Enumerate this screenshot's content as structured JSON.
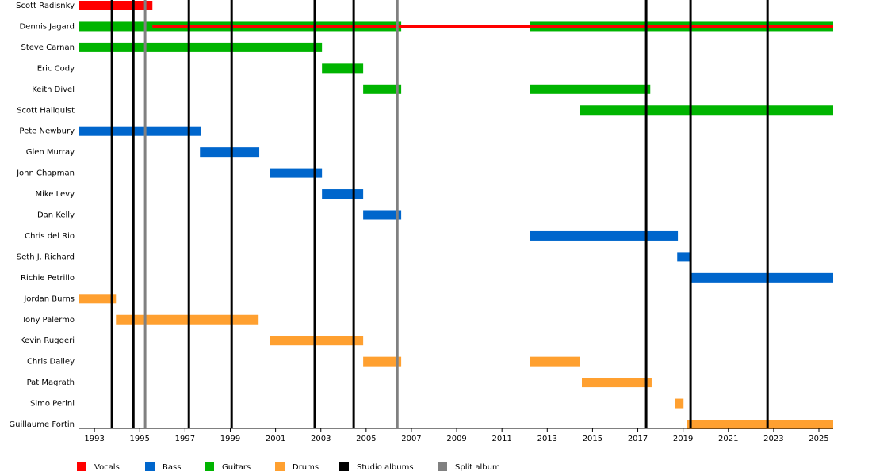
{
  "chart_data": {
    "type": "timeline",
    "categories": [
      "Scott Radisnky",
      "Dennis Jagard",
      "Steve Carnan",
      "Eric Cody",
      "Keith Divel",
      "Scott Hallquist",
      "Pete Newbury",
      "Glen Murray",
      "John Chapman",
      "Mike Levy",
      "Dan Kelly",
      "Chris del Rio",
      "Seth J. Richard",
      "Richie Petrillo",
      "Jordan Burns",
      "Tony Palermo",
      "Kevin Ruggeri",
      "Chris Dalley",
      "Pat Magrath",
      "Simo Perini",
      "Guillaume Fortin"
    ],
    "series": [
      {
        "name": "Vocals",
        "color": "#ff0000",
        "values": [
          [
            [
              1992.33,
              1995.56
            ]
          ],
          [
            [
              1995.56,
              2025.63
            ]
          ],
          [],
          [],
          [],
          [],
          [],
          [],
          [],
          [],
          [],
          [],
          [],
          [],
          [],
          [],
          [],
          [],
          [],
          [],
          []
        ]
      },
      {
        "name": "Bass",
        "color": "#0066cc",
        "values": [
          [],
          [],
          [],
          [],
          [],
          [],
          [
            [
              1992.33,
              1997.69
            ]
          ],
          [
            [
              1997.66,
              2000.28
            ]
          ],
          [
            [
              2000.74,
              2003.05
            ]
          ],
          [
            [
              2003.05,
              2004.87
            ]
          ],
          [
            [
              2004.87,
              2006.55
            ]
          ],
          [
            [
              2012.22,
              2018.77
            ]
          ],
          [
            [
              2018.74,
              2019.3
            ]
          ],
          [
            [
              2019.3,
              2025.63
            ]
          ],
          [],
          [],
          [],
          [],
          [],
          [],
          []
        ]
      },
      {
        "name": "Guitars",
        "color": "#00b400",
        "values": [
          [],
          [
            [
              1992.33,
              2006.55
            ],
            [
              2012.22,
              2025.63
            ]
          ],
          [
            [
              1992.33,
              2003.05
            ]
          ],
          [
            [
              2003.05,
              2004.87
            ]
          ],
          [
            [
              2004.87,
              2006.55
            ],
            [
              2012.22,
              2017.55
            ]
          ],
          [
            [
              2014.46,
              2025.63
            ]
          ],
          [],
          [],
          [],
          [],
          [],
          [],
          [],
          [],
          [],
          [],
          [],
          [],
          [],
          [],
          []
        ]
      },
      {
        "name": "Drums",
        "color": "#ffa030",
        "values": [
          [],
          [],
          [],
          [],
          [],
          [],
          [],
          [],
          [],
          [],
          [],
          [],
          [],
          [],
          [
            [
              1992.33,
              1993.95
            ]
          ],
          [
            [
              1993.95,
              2000.25
            ]
          ],
          [
            [
              2000.74,
              2004.87
            ]
          ],
          [
            [
              2004.87,
              2006.55
            ],
            [
              2012.22,
              2014.46
            ]
          ],
          [
            [
              2014.53,
              2017.61
            ]
          ],
          [
            [
              2018.63,
              2019.02
            ]
          ],
          [
            [
              2019.16,
              2025.63
            ]
          ]
        ]
      }
    ],
    "events": [
      {
        "name": "Studio albums",
        "color": "#000000",
        "values": [
          1993.77,
          1994.72,
          1997.17,
          1999.06,
          2002.73,
          2004.45,
          2017.37,
          2019.33,
          2022.73
        ]
      },
      {
        "name": "Split album",
        "color": "#808080",
        "values": [
          1995.24,
          2006.38
        ]
      }
    ],
    "xlim": [
      1992.33,
      2025.63
    ],
    "xticks": [
      1993,
      1995,
      1997,
      1999,
      2001,
      2003,
      2005,
      2007,
      2009,
      2011,
      2013,
      2015,
      2017,
      2019,
      2021,
      2023,
      2025
    ],
    "legend": "bottom"
  }
}
